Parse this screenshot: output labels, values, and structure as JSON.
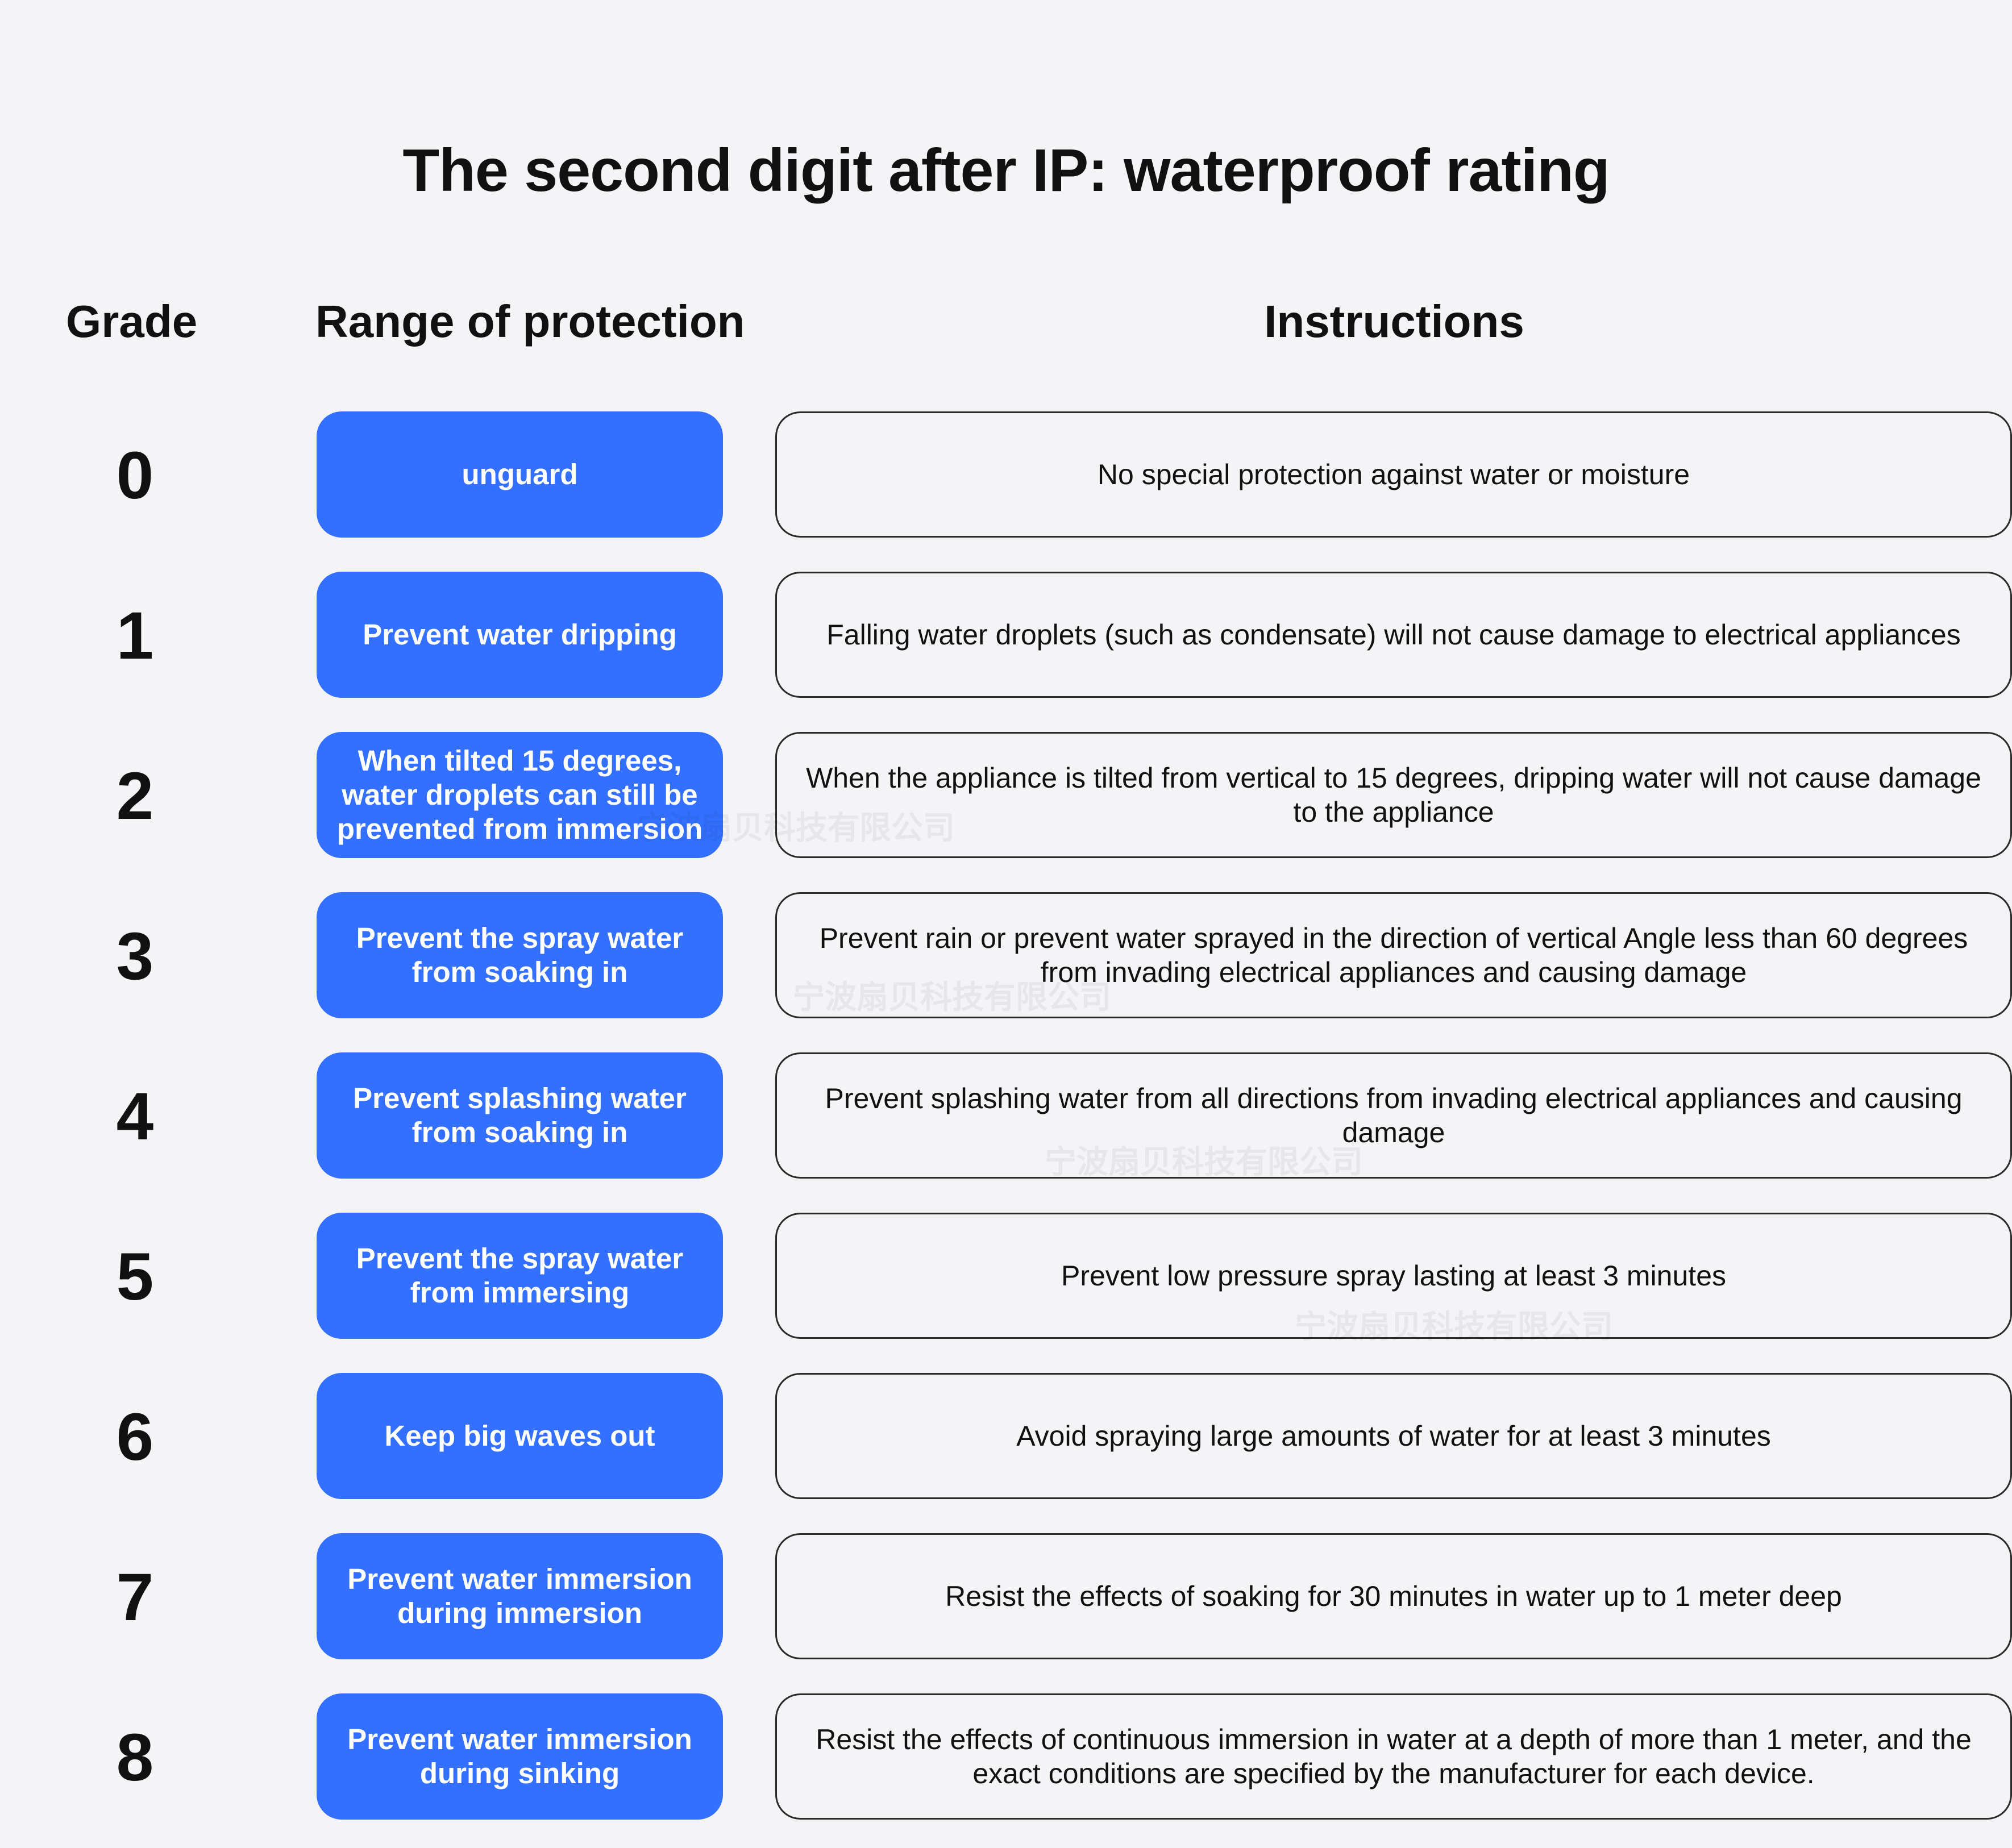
{
  "title": "The second digit after IP: waterproof rating",
  "headers": {
    "grade": "Grade",
    "range": "Range of protection",
    "instructions": "Instructions"
  },
  "rows": [
    {
      "grade": "0",
      "range": "unguard",
      "instruction": "No special protection against water or moisture"
    },
    {
      "grade": "1",
      "range": "Prevent water dripping",
      "instruction": "Falling water droplets (such as condensate) will not cause damage to electrical appliances"
    },
    {
      "grade": "2",
      "range": "When tilted 15 degrees, water droplets can still be prevented from immersion",
      "instruction": "When the appliance is tilted from vertical to 15 degrees, dripping water will not cause damage to the appliance"
    },
    {
      "grade": "3",
      "range": "Prevent the spray water from soaking in",
      "instruction": "Prevent rain or prevent water sprayed in the direction of vertical Angle less than 60 degrees from invading electrical appliances and causing damage"
    },
    {
      "grade": "4",
      "range": "Prevent splashing water from soaking in",
      "instruction": "Prevent splashing water from all directions from invading electrical appliances and causing damage"
    },
    {
      "grade": "5",
      "range": "Prevent the spray water from immersing",
      "instruction": "Prevent low pressure spray lasting at least 3 minutes"
    },
    {
      "grade": "6",
      "range": "Keep big waves out",
      "instruction": "Avoid spraying large amounts of water for at least 3 minutes"
    },
    {
      "grade": "7",
      "range": "Prevent water immersion during immersion",
      "instruction": "Resist the effects of soaking for 30 minutes in water up to 1 meter deep"
    },
    {
      "grade": "8",
      "range": "Prevent water immersion during sinking",
      "instruction": "Resist the effects of continuous immersion in water at a depth of more than 1 meter, and the exact conditions are specified by the manufacturer for each device."
    }
  ],
  "watermark": "宁波扇贝科技有限公司"
}
